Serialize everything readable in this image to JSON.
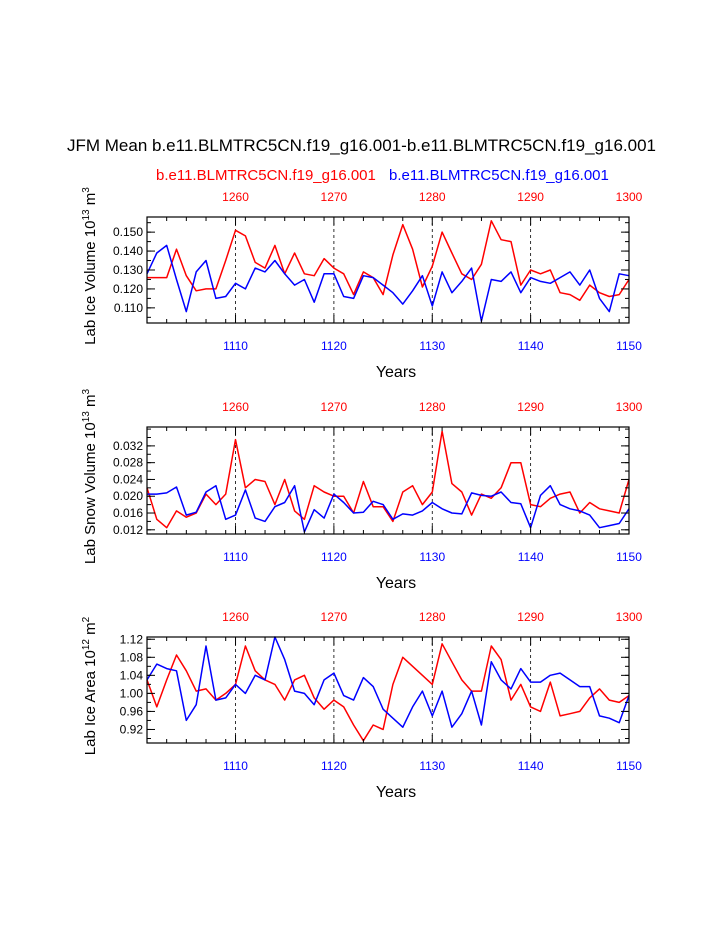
{
  "title": "JFM Mean b.e11.BLMTRC5CN.f19_g16.001-b.e11.BLMTRC5CN.f19_g16.001",
  "legend": {
    "case1": "b.e11.BLMTRC5CN.f19_g16.001",
    "case2": "b.e11.BLMTRC5CN.f19_g16.001"
  },
  "colors": {
    "case1": "#ff0000",
    "case2": "#0000ff",
    "axis": "#000000"
  },
  "chart_data": [
    {
      "type": "line",
      "ylabel": "Lab Ice Volume 10^13 m^3",
      "ylabel_base": "Lab Ice Volume 10",
      "ylabel_exp": "13",
      "ylabel_unit": " m",
      "ylabel_unit_exp": "3",
      "xlabel": "Years",
      "ylim": [
        0.102,
        0.158
      ],
      "yticks": [
        0.11,
        0.12,
        0.13,
        0.14,
        0.15
      ],
      "ytick_labels": [
        "0.110",
        "0.120",
        "0.130",
        "0.140",
        "0.150"
      ],
      "bottom_xlim": [
        1101,
        1150
      ],
      "bottom_xticks": [
        1110,
        1120,
        1130,
        1140,
        1150
      ],
      "bottom_xtick_labels": [
        "1110",
        "1120",
        "1130",
        "1140",
        "1150"
      ],
      "top_xlim": [
        1251,
        1300
      ],
      "top_xticks": [
        1260,
        1270,
        1280,
        1290,
        1300
      ],
      "top_xtick_labels": [
        "1260",
        "1270",
        "1280",
        "1290",
        "1300"
      ],
      "series": [
        {
          "name": "b.e11.BLMTRC5CN.f19_g16.001 (years 1251-1300)",
          "axis": "top",
          "color": "#ff0000",
          "values": [
            0.126,
            0.126,
            0.126,
            0.141,
            0.127,
            0.119,
            0.12,
            0.12,
            0.135,
            0.151,
            0.148,
            0.134,
            0.131,
            0.143,
            0.128,
            0.139,
            0.128,
            0.127,
            0.136,
            0.131,
            0.128,
            0.117,
            0.129,
            0.126,
            0.117,
            0.138,
            0.154,
            0.141,
            0.121,
            0.132,
            0.15,
            0.139,
            0.128,
            0.125,
            0.133,
            0.156,
            0.146,
            0.145,
            0.122,
            0.13,
            0.128,
            0.13,
            0.118,
            0.117,
            0.114,
            0.122,
            0.118,
            0.116,
            0.117,
            0.125
          ]
        },
        {
          "name": "b.e11.BLMTRC5CN.f19_g16.001 (years 1101-1150)",
          "axis": "bottom",
          "color": "#0000ff",
          "values": [
            0.128,
            0.139,
            0.143,
            0.125,
            0.108,
            0.129,
            0.135,
            0.115,
            0.116,
            0.123,
            0.12,
            0.131,
            0.129,
            0.135,
            0.128,
            0.122,
            0.125,
            0.113,
            0.128,
            0.128,
            0.116,
            0.115,
            0.127,
            0.126,
            0.122,
            0.118,
            0.112,
            0.119,
            0.127,
            0.111,
            0.129,
            0.118,
            0.124,
            0.131,
            0.103,
            0.125,
            0.124,
            0.129,
            0.118,
            0.126,
            0.124,
            0.123,
            0.126,
            0.129,
            0.122,
            0.13,
            0.115,
            0.108,
            0.128,
            0.127
          ]
        }
      ]
    },
    {
      "type": "line",
      "ylabel": "Lab Snow Volume 10^13 m^3",
      "ylabel_base": "Lab Snow Volume 10",
      "ylabel_exp": "13",
      "ylabel_unit": " m",
      "ylabel_unit_exp": "3",
      "xlabel": "Years",
      "ylim": [
        0.011,
        0.0365
      ],
      "yticks": [
        0.012,
        0.016,
        0.02,
        0.024,
        0.028,
        0.032
      ],
      "ytick_labels": [
        "0.012",
        "0.016",
        "0.020",
        "0.024",
        "0.028",
        "0.032"
      ],
      "bottom_xlim": [
        1101,
        1150
      ],
      "bottom_xticks": [
        1110,
        1120,
        1130,
        1140,
        1150
      ],
      "bottom_xtick_labels": [
        "1110",
        "1120",
        "1130",
        "1140",
        "1150"
      ],
      "top_xlim": [
        1251,
        1300
      ],
      "top_xticks": [
        1260,
        1270,
        1280,
        1290,
        1300
      ],
      "top_xtick_labels": [
        "1260",
        "1270",
        "1280",
        "1290",
        "1300"
      ],
      "series": [
        {
          "name": "b.e11.BLMTRC5CN.f19_g16.001 (years 1251-1300)",
          "axis": "top",
          "color": "#ff0000",
          "values": [
            0.022,
            0.0145,
            0.0125,
            0.0165,
            0.015,
            0.016,
            0.0205,
            0.018,
            0.0205,
            0.0335,
            0.022,
            0.024,
            0.0235,
            0.018,
            0.024,
            0.0165,
            0.0145,
            0.0225,
            0.021,
            0.02,
            0.02,
            0.016,
            0.0235,
            0.0175,
            0.0175,
            0.014,
            0.021,
            0.0225,
            0.018,
            0.021,
            0.0355,
            0.023,
            0.021,
            0.0155,
            0.0205,
            0.0195,
            0.022,
            0.028,
            0.028,
            0.018,
            0.0175,
            0.0195,
            0.0205,
            0.021,
            0.016,
            0.0185,
            0.017,
            0.0165,
            0.016,
            0.024
          ]
        },
        {
          "name": "b.e11.BLMTRC5CN.f19_g16.001 (years 1101-1150)",
          "axis": "bottom",
          "color": "#0000ff",
          "values": [
            0.0205,
            0.0205,
            0.0208,
            0.0222,
            0.0155,
            0.0162,
            0.021,
            0.0225,
            0.0145,
            0.0155,
            0.0215,
            0.0148,
            0.014,
            0.0175,
            0.0185,
            0.0225,
            0.0115,
            0.0168,
            0.0148,
            0.0205,
            0.0185,
            0.016,
            0.0162,
            0.0188,
            0.018,
            0.0145,
            0.0158,
            0.0155,
            0.0165,
            0.0185,
            0.017,
            0.016,
            0.0158,
            0.0208,
            0.0202,
            0.02,
            0.021,
            0.0185,
            0.0182,
            0.0125,
            0.0202,
            0.0225,
            0.018,
            0.017,
            0.0165,
            0.0155,
            0.0125,
            0.013,
            0.0135,
            0.017
          ]
        }
      ]
    },
    {
      "type": "line",
      "ylabel": "Lab Ice Area 10^12 m^2",
      "ylabel_base": "Lab Ice Area 10",
      "ylabel_exp": "12",
      "ylabel_unit": " m",
      "ylabel_unit_exp": "2",
      "xlabel": "Years",
      "ylim": [
        0.89,
        1.125
      ],
      "yticks": [
        0.92,
        0.96,
        1.0,
        1.04,
        1.08,
        1.12
      ],
      "ytick_labels": [
        "0.92",
        "0.96",
        "1.00",
        "1.04",
        "1.08",
        "1.12"
      ],
      "bottom_xlim": [
        1101,
        1150
      ],
      "bottom_xticks": [
        1110,
        1120,
        1130,
        1140,
        1150
      ],
      "bottom_xtick_labels": [
        "1110",
        "1120",
        "1130",
        "1140",
        "1150"
      ],
      "top_xlim": [
        1251,
        1300
      ],
      "top_xticks": [
        1260,
        1270,
        1280,
        1290,
        1300
      ],
      "top_xtick_labels": [
        "1260",
        "1270",
        "1280",
        "1290",
        "1300"
      ],
      "series": [
        {
          "name": "b.e11.BLMTRC5CN.f19_g16.001 (years 1251-1300)",
          "axis": "top",
          "color": "#ff0000",
          "values": [
            1.03,
            0.97,
            1.03,
            1.085,
            1.05,
            1.005,
            1.01,
            0.985,
            1.0,
            1.02,
            1.105,
            1.05,
            1.03,
            1.02,
            0.985,
            1.03,
            1.04,
            0.99,
            0.965,
            0.985,
            0.97,
            0.93,
            0.895,
            0.93,
            0.92,
            1.02,
            1.08,
            1.06,
            1.04,
            1.02,
            1.11,
            1.07,
            1.03,
            1.005,
            1.005,
            1.105,
            1.075,
            0.985,
            1.02,
            0.97,
            0.96,
            1.025,
            0.95,
            0.955,
            0.96,
            0.99,
            1.01,
            0.985,
            0.98,
            0.995
          ]
        },
        {
          "name": "b.e11.BLMTRC5CN.f19_g16.001 (years 1101-1150)",
          "axis": "bottom",
          "color": "#0000ff",
          "values": [
            1.03,
            1.065,
            1.055,
            1.05,
            0.94,
            0.975,
            1.105,
            0.985,
            0.99,
            1.02,
            1.0,
            1.04,
            1.03,
            1.125,
            1.075,
            1.005,
            1.0,
            0.975,
            1.03,
            1.045,
            0.995,
            0.985,
            1.035,
            1.015,
            0.965,
            0.945,
            0.925,
            0.97,
            1.005,
            0.95,
            1.005,
            0.925,
            0.955,
            1.005,
            0.93,
            1.07,
            1.03,
            1.01,
            1.055,
            1.025,
            1.025,
            1.04,
            1.045,
            1.03,
            1.015,
            1.015,
            0.95,
            0.945,
            0.935,
            0.995
          ]
        }
      ]
    }
  ]
}
